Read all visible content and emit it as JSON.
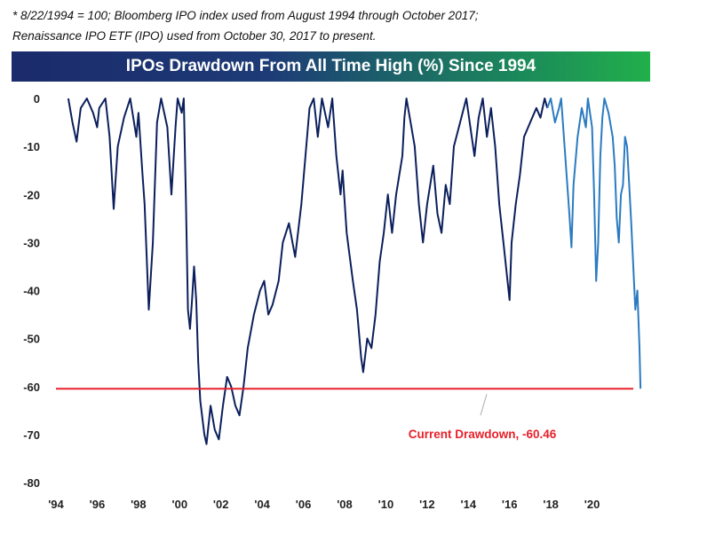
{
  "notes": {
    "line1": "* 8/22/1994 = 100;  Bloomberg IPO index used from August 1994 through October 2017;",
    "line2": "Renaissance IPO ETF (IPO) used from October 30, 2017 to present."
  },
  "chart_data": {
    "type": "line",
    "title": "IPOs Drawdown From All Time High (%) Since 1994",
    "xlabel": "",
    "ylabel": "",
    "ylim": [
      -80,
      0
    ],
    "xlim": [
      1994.0,
      2022.0
    ],
    "yticks": [
      "0",
      "-10",
      "-20",
      "-30",
      "-40",
      "-50",
      "-60",
      "-70",
      "-80"
    ],
    "xticks": [
      "'94",
      "'96",
      "'98",
      "'00",
      "'02",
      "'04",
      "'06",
      "'08",
      "'10",
      "'12",
      "'14",
      "'16",
      "'18",
      "'20"
    ],
    "grid": false,
    "series": [
      {
        "color": "#0b1f5c",
        "points": [
          [
            1994.6,
            0
          ],
          [
            1994.8,
            -5
          ],
          [
            1995.0,
            -9
          ],
          [
            1995.2,
            -2
          ],
          [
            1995.5,
            0
          ],
          [
            1995.8,
            -3
          ],
          [
            1996.0,
            -6
          ],
          [
            1996.1,
            -2
          ],
          [
            1996.4,
            0
          ],
          [
            1996.6,
            -8
          ],
          [
            1996.8,
            -23
          ],
          [
            1997.0,
            -10
          ],
          [
            1997.3,
            -4
          ],
          [
            1997.6,
            0
          ],
          [
            1997.9,
            -8
          ],
          [
            1998.0,
            -3
          ],
          [
            1998.2,
            -16
          ],
          [
            1998.3,
            -22
          ],
          [
            1998.5,
            -44
          ],
          [
            1998.7,
            -30
          ],
          [
            1998.9,
            -5
          ],
          [
            1999.1,
            0
          ],
          [
            1999.4,
            -6
          ],
          [
            1999.6,
            -20
          ],
          [
            1999.8,
            -6
          ],
          [
            1999.9,
            0
          ],
          [
            2000.1,
            -3
          ],
          [
            2000.2,
            0
          ],
          [
            2000.3,
            -20
          ],
          [
            2000.4,
            -44
          ],
          [
            2000.5,
            -48
          ],
          [
            2000.6,
            -42
          ],
          [
            2000.7,
            -35
          ],
          [
            2000.8,
            -42
          ],
          [
            2000.9,
            -55
          ],
          [
            2001.0,
            -63
          ],
          [
            2001.2,
            -70
          ],
          [
            2001.3,
            -72
          ],
          [
            2001.5,
            -64
          ],
          [
            2001.7,
            -69
          ],
          [
            2001.9,
            -71
          ],
          [
            2002.1,
            -64
          ],
          [
            2002.3,
            -58
          ],
          [
            2002.5,
            -60
          ],
          [
            2002.7,
            -64
          ],
          [
            2002.9,
            -66
          ],
          [
            2003.1,
            -60
          ],
          [
            2003.3,
            -52
          ],
          [
            2003.6,
            -45
          ],
          [
            2003.9,
            -40
          ],
          [
            2004.1,
            -38
          ],
          [
            2004.3,
            -45
          ],
          [
            2004.5,
            -43
          ],
          [
            2004.8,
            -38
          ],
          [
            2005.0,
            -30
          ],
          [
            2005.3,
            -26
          ],
          [
            2005.6,
            -33
          ],
          [
            2005.9,
            -22
          ],
          [
            2006.1,
            -12
          ],
          [
            2006.3,
            -2
          ],
          [
            2006.5,
            0
          ],
          [
            2006.7,
            -8
          ],
          [
            2006.9,
            0
          ],
          [
            2007.2,
            -6
          ],
          [
            2007.4,
            0
          ],
          [
            2007.6,
            -12
          ],
          [
            2007.8,
            -20
          ],
          [
            2007.9,
            -15
          ],
          [
            2008.1,
            -28
          ],
          [
            2008.4,
            -38
          ],
          [
            2008.6,
            -44
          ],
          [
            2008.8,
            -54
          ],
          [
            2008.9,
            -57
          ],
          [
            2009.1,
            -50
          ],
          [
            2009.3,
            -52
          ],
          [
            2009.5,
            -45
          ],
          [
            2009.7,
            -34
          ],
          [
            2009.9,
            -28
          ],
          [
            2010.1,
            -20
          ],
          [
            2010.3,
            -28
          ],
          [
            2010.5,
            -20
          ],
          [
            2010.8,
            -12
          ],
          [
            2010.9,
            -4
          ],
          [
            2011.0,
            0
          ],
          [
            2011.2,
            -5
          ],
          [
            2011.4,
            -10
          ],
          [
            2011.6,
            -22
          ],
          [
            2011.8,
            -30
          ],
          [
            2012.0,
            -22
          ],
          [
            2012.3,
            -14
          ],
          [
            2012.5,
            -24
          ],
          [
            2012.7,
            -28
          ],
          [
            2012.9,
            -18
          ],
          [
            2013.1,
            -22
          ],
          [
            2013.3,
            -10
          ],
          [
            2013.6,
            -5
          ],
          [
            2013.9,
            0
          ],
          [
            2014.1,
            -6
          ],
          [
            2014.3,
            -12
          ],
          [
            2014.5,
            -4
          ],
          [
            2014.7,
            0
          ],
          [
            2014.9,
            -8
          ],
          [
            2015.1,
            -2
          ],
          [
            2015.3,
            -10
          ],
          [
            2015.5,
            -22
          ],
          [
            2015.7,
            -30
          ],
          [
            2015.9,
            -38
          ],
          [
            2016.0,
            -42
          ],
          [
            2016.1,
            -30
          ],
          [
            2016.3,
            -22
          ],
          [
            2016.5,
            -16
          ],
          [
            2016.7,
            -8
          ],
          [
            2016.9,
            -6
          ],
          [
            2017.1,
            -4
          ],
          [
            2017.3,
            -2
          ],
          [
            2017.5,
            -4
          ],
          [
            2017.7,
            0
          ],
          [
            2017.83,
            -2
          ]
        ]
      },
      {
        "color": "#2b7bc1",
        "points": [
          [
            2017.83,
            -2
          ],
          [
            2018.0,
            0
          ],
          [
            2018.2,
            -5
          ],
          [
            2018.4,
            -2
          ],
          [
            2018.5,
            0
          ],
          [
            2018.7,
            -12
          ],
          [
            2018.9,
            -24
          ],
          [
            2019.0,
            -31
          ],
          [
            2019.1,
            -18
          ],
          [
            2019.3,
            -8
          ],
          [
            2019.5,
            -2
          ],
          [
            2019.7,
            -6
          ],
          [
            2019.8,
            0
          ],
          [
            2020.0,
            -6
          ],
          [
            2020.1,
            -20
          ],
          [
            2020.2,
            -38
          ],
          [
            2020.3,
            -30
          ],
          [
            2020.4,
            -12
          ],
          [
            2020.5,
            -4
          ],
          [
            2020.6,
            0
          ],
          [
            2020.8,
            -3
          ],
          [
            2021.0,
            -8
          ],
          [
            2021.1,
            -14
          ],
          [
            2021.2,
            -25
          ],
          [
            2021.3,
            -30
          ],
          [
            2021.4,
            -20
          ],
          [
            2021.5,
            -18
          ],
          [
            2021.6,
            -8
          ],
          [
            2021.7,
            -10
          ],
          [
            2021.8,
            -18
          ],
          [
            2021.9,
            -26
          ],
          [
            2022.0,
            -35
          ],
          [
            2022.1,
            -44
          ],
          [
            2022.2,
            -40
          ],
          [
            2022.3,
            -52
          ],
          [
            2022.35,
            -60.46
          ]
        ]
      }
    ],
    "reference_line": {
      "value": -60.46,
      "color": "#e8202a"
    },
    "annotation": {
      "text": "Current Drawdown, -60.46",
      "color": "#e8202a"
    }
  }
}
